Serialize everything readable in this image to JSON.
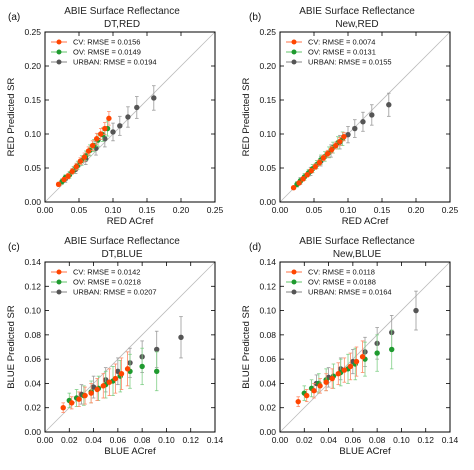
{
  "colors": {
    "cv": "#ff4500",
    "ov": "#1f9a2f",
    "urban": "#555555",
    "err_cv": "#ff8a66",
    "err_ov": "#7fcf86",
    "err_urban": "#9a9a9a",
    "line": "#bbbbbb"
  },
  "panels": [
    {
      "label": "(a)",
      "title": "ABIE Surface Reflectance",
      "subtitle": "DT,RED"
    },
    {
      "label": "(b)",
      "title": "ABIE Surface Reflectance",
      "subtitle": "New,RED"
    },
    {
      "label": "(c)",
      "title": "ABIE Surface Reflectance",
      "subtitle": "DT,BLUE"
    },
    {
      "label": "(d)",
      "title": "ABIE Surface Reflectance",
      "subtitle": "New,BLUE"
    }
  ],
  "chart_data": [
    {
      "type": "scatter",
      "title": "ABIE Surface Reflectance",
      "subtitle": "DT,RED",
      "xlabel": "RED ACref",
      "ylabel": "RED Predicted SR",
      "xlim": [
        0,
        0.25
      ],
      "ylim": [
        0,
        0.25
      ],
      "xticks": [
        "0.00",
        "0.05",
        "0.10",
        "0.15",
        "0.20",
        "0.25"
      ],
      "yticks": [
        "0.00",
        "0.05",
        "0.10",
        "0.15",
        "0.20",
        "0.25"
      ],
      "legend_position": "top-left",
      "series": [
        {
          "name": "CV: RMSE = 0.0156",
          "key": "cv",
          "x": [
            0.02,
            0.028,
            0.034,
            0.04,
            0.046,
            0.052,
            0.058,
            0.064,
            0.07,
            0.076,
            0.082,
            0.088,
            0.094
          ],
          "y": [
            0.026,
            0.033,
            0.038,
            0.045,
            0.052,
            0.06,
            0.066,
            0.075,
            0.083,
            0.093,
            0.1,
            0.108,
            0.123
          ],
          "err": [
            0.003,
            0.003,
            0.004,
            0.004,
            0.005,
            0.005,
            0.006,
            0.006,
            0.007,
            0.008,
            0.008,
            0.009,
            0.01
          ]
        },
        {
          "name": "OV: RMSE = 0.0149",
          "key": "ov",
          "x": [
            0.025,
            0.03,
            0.036,
            0.042,
            0.048,
            0.054,
            0.06,
            0.066,
            0.072,
            0.078,
            0.085,
            0.092
          ],
          "y": [
            0.03,
            0.036,
            0.04,
            0.047,
            0.054,
            0.061,
            0.068,
            0.076,
            0.083,
            0.091,
            0.099,
            0.108
          ],
          "err": [
            0.004,
            0.004,
            0.005,
            0.005,
            0.006,
            0.007,
            0.007,
            0.008,
            0.009,
            0.009,
            0.01,
            0.011
          ]
        },
        {
          "name": "URBAN: RMSE = 0.0194",
          "key": "urban",
          "x": [
            0.03,
            0.045,
            0.06,
            0.075,
            0.088,
            0.1,
            0.11,
            0.122,
            0.135,
            0.16
          ],
          "y": [
            0.034,
            0.048,
            0.063,
            0.079,
            0.093,
            0.103,
            0.112,
            0.125,
            0.139,
            0.153
          ],
          "err": [
            0.005,
            0.006,
            0.008,
            0.01,
            0.012,
            0.013,
            0.014,
            0.015,
            0.016,
            0.018
          ]
        }
      ]
    },
    {
      "type": "scatter",
      "title": "ABIE Surface Reflectance",
      "subtitle": "New,RED",
      "xlabel": "RED ACref",
      "ylabel": "RED Predicted SR",
      "xlim": [
        0,
        0.25
      ],
      "ylim": [
        0,
        0.25
      ],
      "xticks": [
        "0.00",
        "0.05",
        "0.10",
        "0.15",
        "0.20",
        "0.25"
      ],
      "yticks": [
        "0.00",
        "0.05",
        "0.10",
        "0.15",
        "0.20",
        "0.25"
      ],
      "legend_position": "top-left",
      "series": [
        {
          "name": "CV: RMSE = 0.0074",
          "key": "cv",
          "x": [
            0.02,
            0.028,
            0.034,
            0.04,
            0.046,
            0.052,
            0.058,
            0.064,
            0.07,
            0.076,
            0.082,
            0.088,
            0.094
          ],
          "y": [
            0.021,
            0.028,
            0.034,
            0.04,
            0.046,
            0.052,
            0.058,
            0.065,
            0.071,
            0.077,
            0.083,
            0.089,
            0.096
          ],
          "err": [
            0.002,
            0.002,
            0.003,
            0.003,
            0.003,
            0.004,
            0.004,
            0.004,
            0.005,
            0.005,
            0.005,
            0.006,
            0.006
          ]
        },
        {
          "name": "OV: RMSE = 0.0131",
          "key": "ov",
          "x": [
            0.025,
            0.03,
            0.036,
            0.042,
            0.048,
            0.054,
            0.06,
            0.066,
            0.072,
            0.078,
            0.085,
            0.092
          ],
          "y": [
            0.026,
            0.031,
            0.037,
            0.043,
            0.049,
            0.055,
            0.062,
            0.067,
            0.073,
            0.08,
            0.087,
            0.093
          ],
          "err": [
            0.004,
            0.004,
            0.005,
            0.005,
            0.006,
            0.006,
            0.007,
            0.007,
            0.008,
            0.008,
            0.009,
            0.01
          ]
        },
        {
          "name": "URBAN: RMSE = 0.0155",
          "key": "urban",
          "x": [
            0.03,
            0.045,
            0.06,
            0.075,
            0.088,
            0.1,
            0.11,
            0.122,
            0.135,
            0.16
          ],
          "y": [
            0.031,
            0.045,
            0.06,
            0.075,
            0.088,
            0.099,
            0.108,
            0.118,
            0.128,
            0.143
          ],
          "err": [
            0.005,
            0.006,
            0.007,
            0.009,
            0.01,
            0.012,
            0.013,
            0.014,
            0.015,
            0.017
          ]
        }
      ]
    },
    {
      "type": "scatter",
      "title": "ABIE Surface Reflectance",
      "subtitle": "DT,BLUE",
      "xlabel": "BLUE ACref",
      "ylabel": "BLUE Predicted SR",
      "xlim": [
        0,
        0.14
      ],
      "ylim": [
        0,
        0.14
      ],
      "xticks": [
        "0.00",
        "0.02",
        "0.04",
        "0.06",
        "0.08",
        "0.10",
        "0.12",
        "0.14"
      ],
      "yticks": [
        "0.00",
        "0.02",
        "0.04",
        "0.06",
        "0.08",
        "0.10",
        "0.12",
        "0.14"
      ],
      "legend_position": "top-left",
      "series": [
        {
          "name": "CV: RMSE = 0.0142",
          "key": "cv",
          "x": [
            0.015,
            0.022,
            0.028,
            0.033,
            0.038,
            0.043,
            0.048,
            0.053,
            0.058,
            0.063,
            0.068
          ],
          "y": [
            0.02,
            0.024,
            0.027,
            0.03,
            0.032,
            0.035,
            0.038,
            0.041,
            0.044,
            0.048,
            0.052
          ],
          "err": [
            0.004,
            0.005,
            0.006,
            0.007,
            0.008,
            0.009,
            0.01,
            0.011,
            0.012,
            0.013,
            0.014
          ]
        },
        {
          "name": "OV: RMSE = 0.0218",
          "key": "ov",
          "x": [
            0.02,
            0.026,
            0.032,
            0.038,
            0.044,
            0.05,
            0.056,
            0.062,
            0.07,
            0.08,
            0.092
          ],
          "y": [
            0.026,
            0.028,
            0.03,
            0.033,
            0.036,
            0.039,
            0.042,
            0.046,
            0.05,
            0.054,
            0.05
          ],
          "err": [
            0.006,
            0.007,
            0.008,
            0.009,
            0.01,
            0.011,
            0.012,
            0.013,
            0.014,
            0.015,
            0.016
          ]
        },
        {
          "name": "URBAN: RMSE = 0.0207",
          "key": "urban",
          "x": [
            0.03,
            0.04,
            0.05,
            0.06,
            0.07,
            0.08,
            0.092,
            0.112
          ],
          "y": [
            0.031,
            0.037,
            0.043,
            0.05,
            0.057,
            0.062,
            0.068,
            0.078
          ],
          "err": [
            0.008,
            0.009,
            0.01,
            0.011,
            0.012,
            0.013,
            0.015,
            0.017
          ]
        }
      ]
    },
    {
      "type": "scatter",
      "title": "ABIE Surface Reflectance",
      "subtitle": "New,BLUE",
      "xlabel": "BLUE ACref",
      "ylabel": "BLUE Predicted SR",
      "xlim": [
        0,
        0.14
      ],
      "ylim": [
        0,
        0.14
      ],
      "xticks": [
        "0.00",
        "0.02",
        "0.04",
        "0.06",
        "0.08",
        "0.10",
        "0.12",
        "0.14"
      ],
      "yticks": [
        "0.00",
        "0.02",
        "0.04",
        "0.06",
        "0.08",
        "0.10",
        "0.12",
        "0.14"
      ],
      "legend_position": "top-left",
      "series": [
        {
          "name": "CV: RMSE = 0.0118",
          "key": "cv",
          "x": [
            0.015,
            0.022,
            0.028,
            0.033,
            0.038,
            0.043,
            0.048,
            0.053,
            0.058,
            0.063,
            0.068
          ],
          "y": [
            0.025,
            0.03,
            0.034,
            0.038,
            0.041,
            0.044,
            0.048,
            0.051,
            0.054,
            0.058,
            0.062
          ],
          "err": [
            0.004,
            0.005,
            0.006,
            0.006,
            0.007,
            0.008,
            0.009,
            0.01,
            0.011,
            0.012,
            0.013
          ]
        },
        {
          "name": "OV: RMSE = 0.0188",
          "key": "ov",
          "x": [
            0.02,
            0.026,
            0.032,
            0.038,
            0.044,
            0.05,
            0.056,
            0.062,
            0.07,
            0.08,
            0.092
          ],
          "y": [
            0.032,
            0.036,
            0.04,
            0.043,
            0.046,
            0.049,
            0.052,
            0.056,
            0.06,
            0.065,
            0.068
          ],
          "err": [
            0.006,
            0.007,
            0.008,
            0.009,
            0.01,
            0.011,
            0.012,
            0.013,
            0.014,
            0.015,
            0.016
          ]
        },
        {
          "name": "URBAN: RMSE = 0.0164",
          "key": "urban",
          "x": [
            0.03,
            0.04,
            0.05,
            0.06,
            0.07,
            0.08,
            0.092,
            0.112
          ],
          "y": [
            0.04,
            0.045,
            0.052,
            0.058,
            0.066,
            0.073,
            0.082,
            0.1
          ],
          "err": [
            0.007,
            0.008,
            0.009,
            0.01,
            0.012,
            0.013,
            0.014,
            0.016
          ]
        }
      ]
    }
  ]
}
